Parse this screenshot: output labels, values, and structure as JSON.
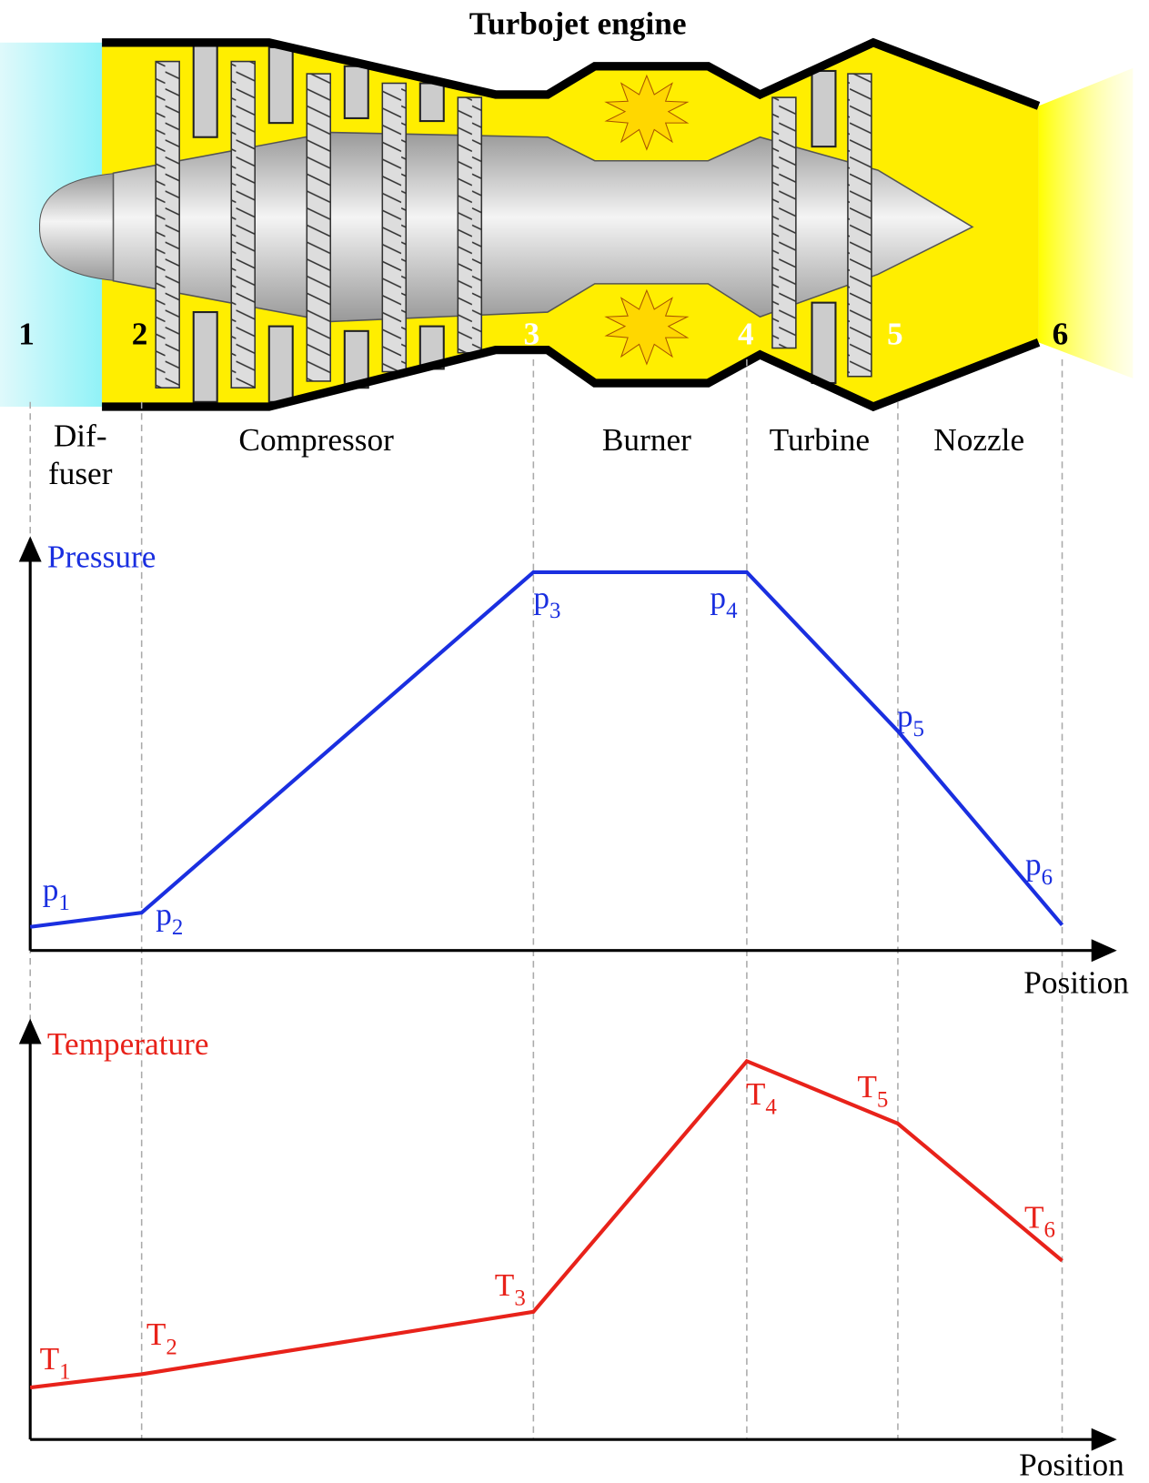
{
  "header": {
    "title": "Turbojet engine"
  },
  "stations": [
    "1",
    "2",
    "3",
    "4",
    "5",
    "6"
  ],
  "sections": {
    "diffuser": [
      "Dif-",
      "fuser"
    ],
    "compressor": "Compressor",
    "burner": "Burner",
    "turbine": "Turbine",
    "nozzle": "Nozzle"
  },
  "pressure_chart": {
    "title": "Pressure",
    "x_label": "Position",
    "labels": [
      {
        "base": "p",
        "sub": "1"
      },
      {
        "base": "p",
        "sub": "2"
      },
      {
        "base": "p",
        "sub": "3"
      },
      {
        "base": "p",
        "sub": "4"
      },
      {
        "base": "p",
        "sub": "5"
      },
      {
        "base": "p",
        "sub": "6"
      }
    ]
  },
  "temperature_chart": {
    "title": "Temperature",
    "x_label": "Position",
    "labels": [
      {
        "base": "T",
        "sub": "1"
      },
      {
        "base": "T",
        "sub": "2"
      },
      {
        "base": "T",
        "sub": "3"
      },
      {
        "base": "T",
        "sub": "4"
      },
      {
        "base": "T",
        "sub": "5"
      },
      {
        "base": "T",
        "sub": "6"
      }
    ]
  }
}
